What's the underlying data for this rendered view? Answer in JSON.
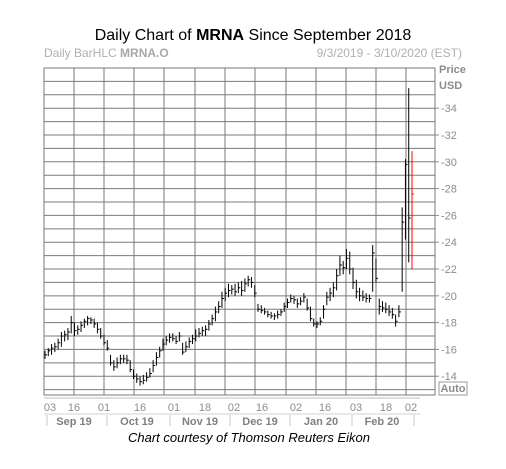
{
  "chart_data": {
    "type": "ohlc",
    "title_prefix": "Daily Chart of ",
    "title_symbol": "MRNA",
    "title_suffix": " Since September 2018",
    "chart_label_prefix": "Daily BarHLC ",
    "chart_label_symbol": "MRNA.O",
    "date_range": "9/3/2019 - 3/10/2020 (EST)",
    "ylabel_line1": "Price",
    "ylabel_line2": "USD",
    "ylim": [
      12.6,
      37
    ],
    "yticks": [
      14,
      16,
      18,
      20,
      22,
      24,
      26,
      28,
      30,
      32,
      34
    ],
    "day_ticks": [
      "03",
      "16",
      "01",
      "16",
      "01",
      "18",
      "02",
      "16",
      "02",
      "16",
      "03",
      "18",
      "02"
    ],
    "month_labels": [
      "Sep 19",
      "Oct 19",
      "Nov 19",
      "Dec 19",
      "Jan 20",
      "Feb 20"
    ],
    "auto_label": "Auto",
    "credit": "Chart courtesy of Thomson Reuters Eikon",
    "colors": {
      "grid": "#7a7a7a",
      "bars": "#000000",
      "last_price": "#ff0000",
      "axis_text": "#8c8c8c"
    },
    "ohlc": [
      [
        15.9,
        15.3,
        15.6
      ],
      [
        16.1,
        15.5,
        15.9
      ],
      [
        16.4,
        15.6,
        16.1
      ],
      [
        16.5,
        15.8,
        16.2
      ],
      [
        16.8,
        16.0,
        16.5
      ],
      [
        17.3,
        16.2,
        17.0
      ],
      [
        17.4,
        16.6,
        17.1
      ],
      [
        17.6,
        16.7,
        17.3
      ],
      [
        18.5,
        17.2,
        18.0
      ],
      [
        18.0,
        17.0,
        17.4
      ],
      [
        17.8,
        17.1,
        17.5
      ],
      [
        18.1,
        17.3,
        17.8
      ],
      [
        18.3,
        17.6,
        18.1
      ],
      [
        18.5,
        17.8,
        18.3
      ],
      [
        18.4,
        17.9,
        18.2
      ],
      [
        18.3,
        17.6,
        17.9
      ],
      [
        18.0,
        17.2,
        17.5
      ],
      [
        17.6,
        16.8,
        17.0
      ],
      [
        17.1,
        16.3,
        16.5
      ],
      [
        16.7,
        15.9,
        16.1
      ],
      [
        15.6,
        14.8,
        15.0
      ],
      [
        15.2,
        14.4,
        14.7
      ],
      [
        15.4,
        14.6,
        15.0
      ],
      [
        15.6,
        14.9,
        15.3
      ],
      [
        15.6,
        15.0,
        15.3
      ],
      [
        15.6,
        14.9,
        15.2
      ],
      [
        15.2,
        14.3,
        14.5
      ],
      [
        14.5,
        13.8,
        14.0
      ],
      [
        14.2,
        13.5,
        13.8
      ],
      [
        14.0,
        13.3,
        13.6
      ],
      [
        14.1,
        13.4,
        13.7
      ],
      [
        14.3,
        13.6,
        13.9
      ],
      [
        14.6,
        13.9,
        14.2
      ],
      [
        15.2,
        14.3,
        14.8
      ],
      [
        15.8,
        14.8,
        15.4
      ],
      [
        16.2,
        15.4,
        15.9
      ],
      [
        16.8,
        15.9,
        16.4
      ],
      [
        17.0,
        16.3,
        16.7
      ],
      [
        17.2,
        16.5,
        16.9
      ],
      [
        17.2,
        16.6,
        16.8
      ],
      [
        17.0,
        16.4,
        16.6
      ],
      [
        17.3,
        16.6,
        17.0
      ],
      [
        16.5,
        15.6,
        15.8
      ],
      [
        16.6,
        15.8,
        16.2
      ],
      [
        16.9,
        16.1,
        16.6
      ],
      [
        17.1,
        16.4,
        16.8
      ],
      [
        17.5,
        16.6,
        17.0
      ],
      [
        17.6,
        16.9,
        17.2
      ],
      [
        17.7,
        17.0,
        17.4
      ],
      [
        17.8,
        17.0,
        17.5
      ],
      [
        18.2,
        17.4,
        17.9
      ],
      [
        18.6,
        17.8,
        18.3
      ],
      [
        19.2,
        18.1,
        18.8
      ],
      [
        19.6,
        18.7,
        19.2
      ],
      [
        20.3,
        19.1,
        19.8
      ],
      [
        20.6,
        19.6,
        20.2
      ],
      [
        20.9,
        19.9,
        20.4
      ],
      [
        20.8,
        20.1,
        20.5
      ],
      [
        20.9,
        20.0,
        20.3
      ],
      [
        21.0,
        20.2,
        20.6
      ],
      [
        21.1,
        20.0,
        20.4
      ],
      [
        21.3,
        20.3,
        20.9
      ],
      [
        21.5,
        20.7,
        21.2
      ],
      [
        21.4,
        20.6,
        21.0
      ],
      [
        20.8,
        19.9,
        20.2
      ],
      [
        19.4,
        18.8,
        19.0
      ],
      [
        19.3,
        18.7,
        18.9
      ],
      [
        19.1,
        18.6,
        18.8
      ],
      [
        18.9,
        18.4,
        18.6
      ],
      [
        18.8,
        18.3,
        18.5
      ],
      [
        18.7,
        18.2,
        18.5
      ],
      [
        18.9,
        18.3,
        18.6
      ],
      [
        19.0,
        18.5,
        18.8
      ],
      [
        19.5,
        18.8,
        19.2
      ],
      [
        19.8,
        19.1,
        19.5
      ],
      [
        20.1,
        19.5,
        19.8
      ],
      [
        20.0,
        19.4,
        19.7
      ],
      [
        19.8,
        19.1,
        19.4
      ],
      [
        19.9,
        19.3,
        19.6
      ],
      [
        20.2,
        19.5,
        19.9
      ],
      [
        19.8,
        18.9,
        19.1
      ],
      [
        19.2,
        18.1,
        18.3
      ],
      [
        18.3,
        17.7,
        17.9
      ],
      [
        18.1,
        17.6,
        17.9
      ],
      [
        18.4,
        17.8,
        18.1
      ],
      [
        19.3,
        18.3,
        19.0
      ],
      [
        20.3,
        19.3,
        19.9
      ],
      [
        20.6,
        19.6,
        20.2
      ],
      [
        21.0,
        19.9,
        20.6
      ],
      [
        22.0,
        20.4,
        21.5
      ],
      [
        23.0,
        21.5,
        22.3
      ],
      [
        22.6,
        21.6,
        22.1
      ],
      [
        23.5,
        22.0,
        22.8
      ],
      [
        23.3,
        21.6,
        22.0
      ],
      [
        22.1,
        20.5,
        21.0
      ],
      [
        21.2,
        19.8,
        20.3
      ],
      [
        20.6,
        19.6,
        20.0
      ],
      [
        20.4,
        19.6,
        19.9
      ],
      [
        20.2,
        19.5,
        19.8
      ],
      [
        20.1,
        19.5,
        19.8
      ],
      [
        23.8,
        20.3,
        23.2
      ],
      [
        22.8,
        21.0,
        21.3
      ],
      [
        19.8,
        18.6,
        19.2
      ],
      [
        19.6,
        18.8,
        19.1
      ],
      [
        19.5,
        18.7,
        19.0
      ],
      [
        19.3,
        18.5,
        18.8
      ],
      [
        19.1,
        18.3,
        18.6
      ],
      [
        18.6,
        17.7,
        18.1
      ],
      [
        19.3,
        18.4,
        18.8
      ],
      [
        26.6,
        20.3,
        25.5
      ],
      [
        30.2,
        24.2,
        29.8
      ],
      [
        35.5,
        22.5,
        25.8
      ],
      [
        30.8,
        22.0,
        27.6
      ]
    ]
  }
}
